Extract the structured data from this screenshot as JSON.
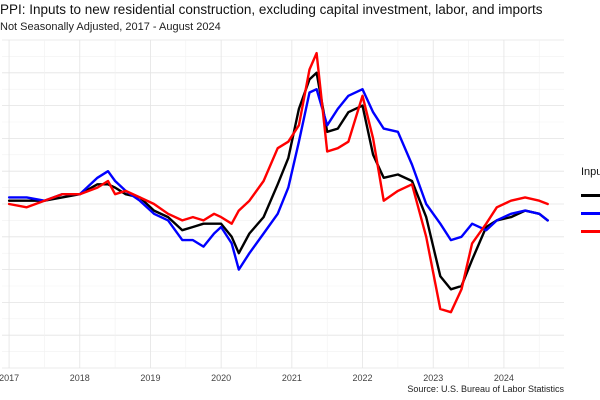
{
  "title": "PPI: Inputs to new residential construction, excluding capital investment, labor, and imports",
  "subtitle": "Not Seasonally Adjusted, 2017 - August 2024",
  "source": "Source: U.S. Bureau of Labor Statistics",
  "legend_title": "Inpu",
  "chart_data": {
    "type": "line",
    "title": "PPI: Inputs to new residential construction, excluding capital investment, labor, and imports",
    "subtitle": "Not Seasonally Adjusted, 2017 - August 2024",
    "x_tick_labels": [
      "2017",
      "2018",
      "2019",
      "2020",
      "2021",
      "2022",
      "2023",
      "2024"
    ],
    "x_range": [
      2016.9,
      2024.85
    ],
    "y_range": [
      0,
      100
    ],
    "y_tick_labels_visible": false,
    "grid": true,
    "legend_placement": "right",
    "series": [
      {
        "color": "#000000",
        "points": [
          [
            2017.0,
            51
          ],
          [
            2017.25,
            51
          ],
          [
            2017.5,
            51
          ],
          [
            2017.75,
            52
          ],
          [
            2018.0,
            53
          ],
          [
            2018.25,
            56
          ],
          [
            2018.4,
            56
          ],
          [
            2018.5,
            55
          ],
          [
            2018.65,
            53
          ],
          [
            2018.85,
            52
          ],
          [
            2019.05,
            48
          ],
          [
            2019.25,
            46
          ],
          [
            2019.45,
            42
          ],
          [
            2019.6,
            43
          ],
          [
            2019.75,
            44
          ],
          [
            2019.9,
            44
          ],
          [
            2020.0,
            44
          ],
          [
            2020.15,
            40
          ],
          [
            2020.25,
            35
          ],
          [
            2020.4,
            41
          ],
          [
            2020.6,
            46
          ],
          [
            2020.8,
            56
          ],
          [
            2020.95,
            64
          ],
          [
            2021.1,
            79
          ],
          [
            2021.25,
            88
          ],
          [
            2021.35,
            90
          ],
          [
            2021.5,
            72
          ],
          [
            2021.65,
            73
          ],
          [
            2021.8,
            78
          ],
          [
            2022.0,
            80
          ],
          [
            2022.15,
            65
          ],
          [
            2022.3,
            58
          ],
          [
            2022.5,
            59
          ],
          [
            2022.7,
            57
          ],
          [
            2022.9,
            46
          ],
          [
            2023.1,
            28
          ],
          [
            2023.25,
            24
          ],
          [
            2023.4,
            25
          ],
          [
            2023.55,
            33
          ],
          [
            2023.75,
            43
          ],
          [
            2023.9,
            45
          ],
          [
            2024.1,
            46
          ],
          [
            2024.3,
            48
          ],
          [
            2024.5,
            47
          ],
          [
            2024.62,
            45
          ]
        ]
      },
      {
        "color": "#0000ff",
        "points": [
          [
            2017.0,
            52
          ],
          [
            2017.25,
            52
          ],
          [
            2017.5,
            51
          ],
          [
            2017.75,
            53
          ],
          [
            2018.0,
            53
          ],
          [
            2018.25,
            58
          ],
          [
            2018.4,
            60
          ],
          [
            2018.5,
            57
          ],
          [
            2018.65,
            54
          ],
          [
            2018.85,
            51
          ],
          [
            2019.05,
            47
          ],
          [
            2019.25,
            45
          ],
          [
            2019.45,
            39
          ],
          [
            2019.6,
            39
          ],
          [
            2019.75,
            37
          ],
          [
            2019.9,
            41
          ],
          [
            2020.0,
            43
          ],
          [
            2020.15,
            38
          ],
          [
            2020.25,
            30
          ],
          [
            2020.4,
            35
          ],
          [
            2020.6,
            41
          ],
          [
            2020.8,
            47
          ],
          [
            2020.95,
            55
          ],
          [
            2021.1,
            69
          ],
          [
            2021.25,
            84
          ],
          [
            2021.35,
            85
          ],
          [
            2021.5,
            74
          ],
          [
            2021.65,
            79
          ],
          [
            2021.8,
            83
          ],
          [
            2022.0,
            85
          ],
          [
            2022.15,
            78
          ],
          [
            2022.3,
            73
          ],
          [
            2022.5,
            72
          ],
          [
            2022.7,
            62
          ],
          [
            2022.9,
            50
          ],
          [
            2023.1,
            44
          ],
          [
            2023.25,
            39
          ],
          [
            2023.4,
            40
          ],
          [
            2023.55,
            44
          ],
          [
            2023.75,
            42
          ],
          [
            2023.9,
            45
          ],
          [
            2024.1,
            47
          ],
          [
            2024.3,
            48
          ],
          [
            2024.5,
            47
          ],
          [
            2024.62,
            45
          ]
        ]
      },
      {
        "color": "#ff0000",
        "points": [
          [
            2017.0,
            50
          ],
          [
            2017.25,
            49
          ],
          [
            2017.5,
            51
          ],
          [
            2017.75,
            53
          ],
          [
            2018.0,
            53
          ],
          [
            2018.25,
            55
          ],
          [
            2018.4,
            57
          ],
          [
            2018.5,
            53
          ],
          [
            2018.65,
            54
          ],
          [
            2018.85,
            52
          ],
          [
            2019.05,
            50
          ],
          [
            2019.25,
            47
          ],
          [
            2019.45,
            45
          ],
          [
            2019.6,
            46
          ],
          [
            2019.75,
            45
          ],
          [
            2019.9,
            47
          ],
          [
            2020.0,
            46
          ],
          [
            2020.15,
            44
          ],
          [
            2020.25,
            48
          ],
          [
            2020.4,
            51
          ],
          [
            2020.6,
            57
          ],
          [
            2020.8,
            67
          ],
          [
            2020.95,
            69
          ],
          [
            2021.1,
            74
          ],
          [
            2021.25,
            91
          ],
          [
            2021.35,
            96
          ],
          [
            2021.5,
            66
          ],
          [
            2021.65,
            67
          ],
          [
            2021.8,
            69
          ],
          [
            2022.0,
            83
          ],
          [
            2022.15,
            70
          ],
          [
            2022.3,
            51
          ],
          [
            2022.5,
            54
          ],
          [
            2022.7,
            56
          ],
          [
            2022.9,
            40
          ],
          [
            2023.1,
            18
          ],
          [
            2023.25,
            17
          ],
          [
            2023.4,
            24
          ],
          [
            2023.55,
            38
          ],
          [
            2023.75,
            44
          ],
          [
            2023.9,
            49
          ],
          [
            2024.1,
            51
          ],
          [
            2024.3,
            52
          ],
          [
            2024.5,
            51
          ],
          [
            2024.62,
            50
          ]
        ]
      }
    ]
  }
}
